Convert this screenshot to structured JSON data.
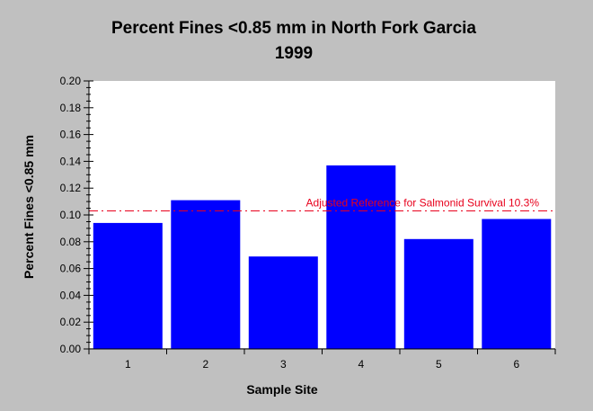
{
  "chart_data": {
    "type": "bar",
    "title": "Percent Fines <0.85 mm in North Fork Garcia",
    "subtitle": "1999",
    "xlabel": "Sample Site",
    "ylabel": "Percent Fines <0.85 mm",
    "categories": [
      "1",
      "2",
      "3",
      "4",
      "5",
      "6"
    ],
    "values": [
      0.094,
      0.111,
      0.069,
      0.137,
      0.082,
      0.097
    ],
    "ylim": [
      0,
      0.2
    ],
    "yticks": [
      "0.00",
      "0.02",
      "0.04",
      "0.06",
      "0.08",
      "0.10",
      "0.12",
      "0.14",
      "0.16",
      "0.18",
      "0.20"
    ],
    "reference_line": {
      "value": 0.103,
      "label": "Adjusted Reference for Salmonid Survival 10.3%",
      "color": "#e8001c"
    },
    "bar_color": "#0000ff",
    "plot_background": "#ffffff",
    "page_background": "#c0c0c0",
    "grid": false,
    "legend": "none"
  }
}
